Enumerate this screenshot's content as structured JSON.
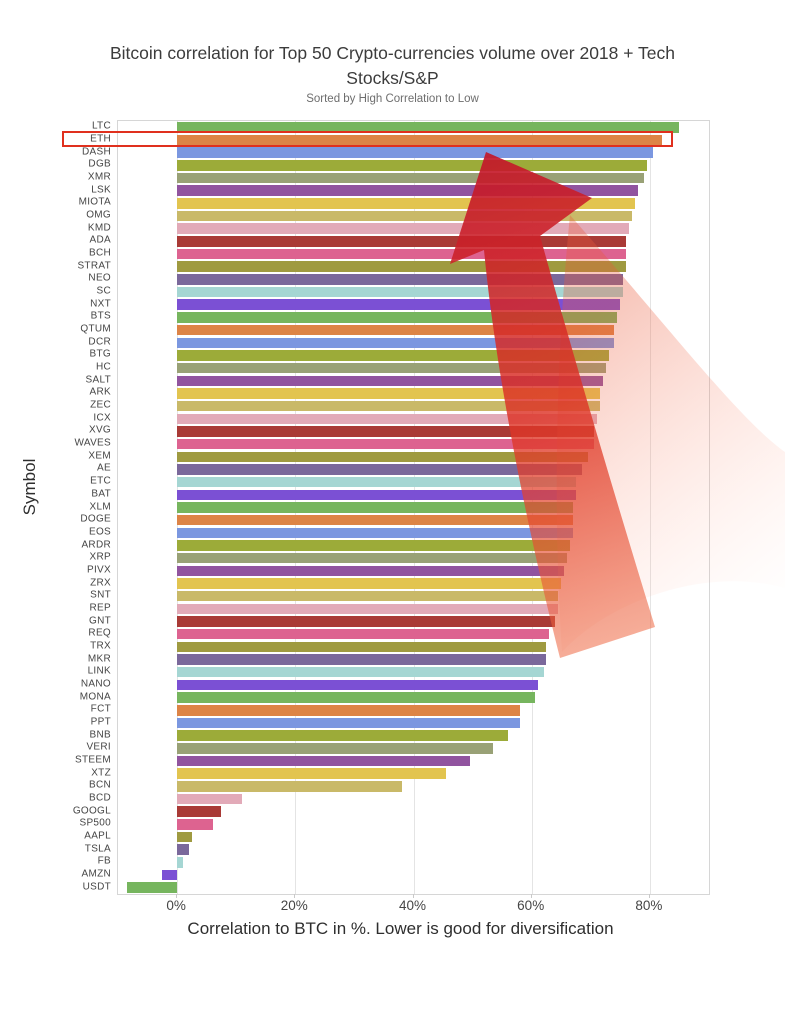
{
  "chart_data": {
    "type": "bar",
    "orientation": "horizontal",
    "title": "Bitcoin correlation for Top 50 Crypto-currencies volume over 2018 + Tech Stocks/S&P",
    "subtitle": "Sorted by High Correlation to Low",
    "xlabel": "Correlation to BTC in %. Lower is good for diversification",
    "ylabel": "Symbol",
    "xlim": [
      -10,
      90
    ],
    "xticks": [
      "0%",
      "20%",
      "40%",
      "60%",
      "80%"
    ],
    "xtick_values": [
      0,
      20,
      40,
      60,
      80
    ],
    "grid": "vertical-only",
    "legend": "none",
    "sort_order": "high correlation to low",
    "categories": [
      "LTC",
      "ETH",
      "DASH",
      "DGB",
      "XMR",
      "LSK",
      "MIOTA",
      "OMG",
      "KMD",
      "ADA",
      "BCH",
      "STRAT",
      "NEO",
      "SC",
      "NXT",
      "BTS",
      "QTUM",
      "DCR",
      "BTG",
      "HC",
      "SALT",
      "ARK",
      "ZEC",
      "ICX",
      "XVG",
      "WAVES",
      "XEM",
      "AE",
      "ETC",
      "BAT",
      "XLM",
      "DOGE",
      "EOS",
      "ARDR",
      "XRP",
      "PIVX",
      "ZRX",
      "SNT",
      "REP",
      "GNT",
      "REQ",
      "TRX",
      "MKR",
      "LINK",
      "NANO",
      "MONA",
      "FCT",
      "PPT",
      "BNB",
      "VERI",
      "STEEM",
      "XTZ",
      "BCN",
      "BCD",
      "GOOGL",
      "SP500",
      "AAPL",
      "TSLA",
      "FB",
      "AMZN",
      "USDT"
    ],
    "values": [
      85,
      82,
      80.5,
      79.5,
      79,
      78,
      77.5,
      77,
      76.5,
      76,
      76,
      76,
      75.5,
      75.5,
      75,
      74.5,
      74,
      74,
      73,
      72.5,
      72,
      71.5,
      71.5,
      71,
      70.5,
      70.5,
      69.5,
      68.5,
      67.5,
      67.5,
      67,
      67,
      67,
      66.5,
      66,
      65.5,
      65,
      64.5,
      64.5,
      64,
      63,
      62.5,
      62.5,
      62,
      61,
      60.5,
      58,
      58,
      56,
      53.5,
      49.5,
      45.5,
      38,
      11,
      7.5,
      6,
      2.5,
      2,
      1,
      -2.5,
      -8.5
    ],
    "palette": [
      "#76b55e",
      "#dd8446",
      "#7b97e0",
      "#9cab39",
      "#99a176",
      "#91549f",
      "#e2c44f",
      "#c9b968",
      "#e2aab8",
      "#a93a36",
      "#dd6390",
      "#9f9a40",
      "#7a689b",
      "#a5d6d3",
      "#7b50d4"
    ],
    "highlight": {
      "symbol": "ETH",
      "box_color": "#e0301e"
    },
    "annotations": {
      "arrow": "large semi-transparent red arrow pointing up-left toward the highest correlations",
      "arrow_color": "#d42b28"
    }
  }
}
